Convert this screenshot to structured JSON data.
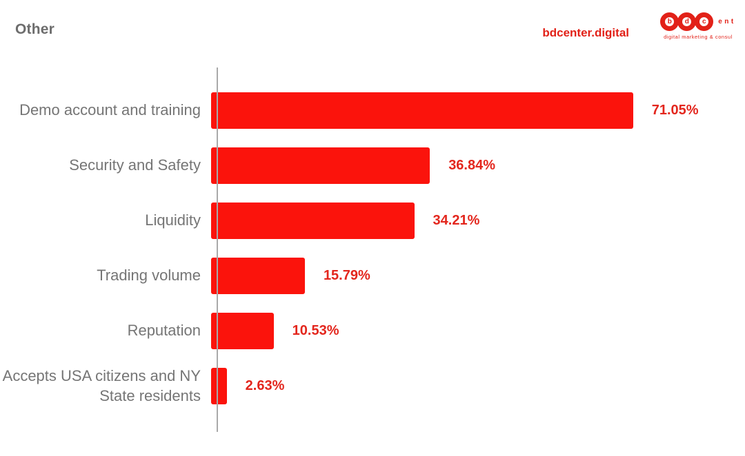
{
  "page": {
    "title": "Other"
  },
  "brand": {
    "site": "bdcenter.digital",
    "logo_letters": [
      "b",
      "d",
      "c"
    ],
    "logo_suffix": "ent",
    "tagline": "digital marketing & consul"
  },
  "colors": {
    "bar": "#fb130c",
    "value_text": "#e3261d",
    "category_text": "#757575",
    "brand_red": "#e22118",
    "title_text": "#6d6d6d",
    "axis": "#a9a9a9",
    "background": "#ffffff"
  },
  "chart_data": {
    "type": "bar",
    "orientation": "horizontal",
    "title": "Other",
    "xlabel": "",
    "ylabel": "",
    "categories": [
      "Demo account and training",
      "Security and Safety",
      "Liquidity",
      "Trading volume",
      "Reputation",
      "Accepts USA citizens and NY State residents"
    ],
    "values": [
      71.05,
      36.84,
      34.21,
      15.79,
      10.53,
      2.63
    ],
    "value_labels": [
      "71.05%",
      "36.84%",
      "34.21%",
      "15.79%",
      "10.53%",
      "2.63%"
    ],
    "xlim": [
      0,
      88.9
    ],
    "grid": false,
    "legend": false,
    "bar_color": "#fb130c"
  }
}
